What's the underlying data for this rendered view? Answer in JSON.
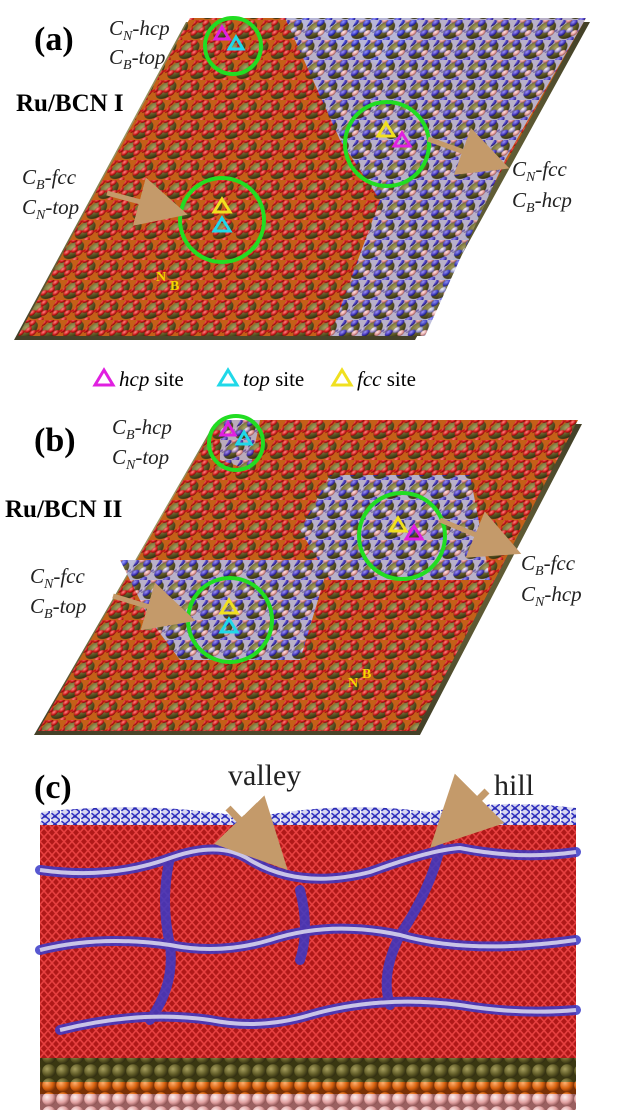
{
  "panels": [
    {
      "id": "a",
      "label": "(a)",
      "system": "Ru/BCN I",
      "sites": [
        {
          "name": "CN-hcp / CB-top",
          "line1_main": "C",
          "line1_sub": "N",
          "line1_rest": "-hcp",
          "line2_main": "C",
          "line2_sub": "B",
          "line2_rest": "-top"
        },
        {
          "name": "CB-fcc / CN-top",
          "line1_main": "C",
          "line1_sub": "B",
          "line1_rest": "-fcc",
          "line2_main": "C",
          "line2_sub": "N",
          "line2_rest": "-top"
        },
        {
          "name": "CN-fcc / CB-hcp",
          "line1_main": "C",
          "line1_sub": "N",
          "line1_rest": "-fcc",
          "line2_main": "C",
          "line2_sub": "B",
          "line2_rest": "-hcp"
        }
      ],
      "nb_label": {
        "n": "N",
        "b": "B"
      }
    },
    {
      "id": "b",
      "label": "(b)",
      "system": "Ru/BCN II",
      "sites": [
        {
          "name": "CB-hcp / CN-top",
          "line1_main": "C",
          "line1_sub": "B",
          "line1_rest": "-hcp",
          "line2_main": "C",
          "line2_sub": "N",
          "line2_rest": "-top"
        },
        {
          "name": "CN-fcc / CB-top",
          "line1_main": "C",
          "line1_sub": "N",
          "line1_rest": "-fcc",
          "line2_main": "C",
          "line2_sub": "B",
          "line2_rest": "-top"
        },
        {
          "name": "CB-fcc / CN-hcp",
          "line1_main": "C",
          "line1_sub": "B",
          "line1_rest": "-fcc",
          "line2_main": "C",
          "line2_sub": "N",
          "line2_rest": "-hcp"
        }
      ],
      "nb_label": {
        "n": "N",
        "b": "B"
      }
    },
    {
      "id": "c",
      "label": "(c)",
      "annotations": {
        "valley": "valley",
        "hill": "hill"
      }
    }
  ],
  "legend": [
    {
      "key": "hcp",
      "italic": "hcp",
      "rest": " site",
      "color": "#e020e0"
    },
    {
      "key": "top",
      "italic": "top",
      "rest": " site",
      "color": "#20d8e8"
    },
    {
      "key": "fcc",
      "italic": "fcc",
      "rest": " site",
      "color": "#f0e020"
    }
  ],
  "colors": {
    "ru_dark": "#5f5a26",
    "ru_orange": "#d8620f",
    "carbon_red": "#d21e1e",
    "nitrogen_blue": "#3a3ac8",
    "boron_pink": "#e2a2a2",
    "hydrogen_white": "#e8e8ee",
    "circle_green": "#22dd22",
    "arrow_tan": "#c49a6a"
  }
}
